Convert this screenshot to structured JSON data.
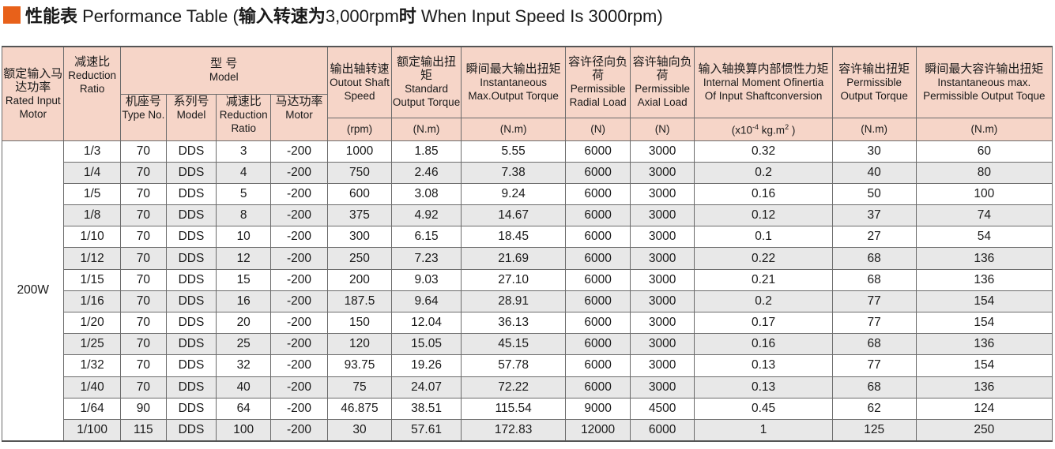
{
  "title": {
    "part1_bold": "性能表",
    "part2": " Performance Table (",
    "part3_bold": "输入转速为",
    "part4": "3,000rpm",
    "part5_bold": "时",
    "part6": " When Input Speed Is 3000rpm)"
  },
  "headers": {
    "rated_motor": {
      "cn": "额定输入马达功率",
      "en": "Rated Input Motor"
    },
    "reduction_ratio": {
      "cn": "减速比",
      "en": "Reduction Ratio"
    },
    "model_group": {
      "cn": "型 号",
      "en": "Model"
    },
    "type_no": {
      "cn": "机座号",
      "en": "Type No."
    },
    "series_model": {
      "cn": "系列号",
      "en": "Model"
    },
    "sub_ratio": {
      "cn": "减速比",
      "en": "Reduction Ratio"
    },
    "motor": {
      "cn": "马达功率",
      "en": "Motor"
    },
    "output_speed": {
      "cn": "输出轴转速",
      "en": "Outout Shaft Speed",
      "unit": "(rpm)"
    },
    "standard_torque": {
      "cn": "额定输出扭矩",
      "en": "Standard Output Torque",
      "unit": "(N.m)"
    },
    "max_torque": {
      "cn": "瞬间最大输出扭矩",
      "en": "Instantaneous Max.Output Torque",
      "unit": "(N.m)"
    },
    "radial_load": {
      "cn": "容许径向负荷",
      "en": "Permissible Radial Load",
      "unit": "(N)"
    },
    "axial_load": {
      "cn": "容许轴向负荷",
      "en": "Permissible Axial Load",
      "unit": "(N)"
    },
    "inertia": {
      "cn": "输入轴换算内部惯性力矩",
      "en1": "Internal Moment Ofinertia",
      "en2": "Of Input Shaftconversion",
      "unit_a": "(x10",
      "unit_sup1": "-4",
      "unit_b": " kg.m",
      "unit_sup2": "2",
      "unit_c": " )"
    },
    "perm_torque": {
      "cn": "容许输出扭矩",
      "en": "Permissible Output Torque",
      "unit": "(N.m)"
    },
    "perm_max_torque": {
      "cn": "瞬间最大容许输出扭矩",
      "en": "Instantaneous max. Permissible Output Toque",
      "unit": "(N.m)"
    }
  },
  "motor_power": "200W",
  "rows": [
    [
      "1/3",
      "70",
      "DDS",
      "3",
      "-200",
      "1000",
      "1.85",
      "5.55",
      "6000",
      "3000",
      "0.32",
      "30",
      "60"
    ],
    [
      "1/4",
      "70",
      "DDS",
      "4",
      "-200",
      "750",
      "2.46",
      "7.38",
      "6000",
      "3000",
      "0.2",
      "40",
      "80"
    ],
    [
      "1/5",
      "70",
      "DDS",
      "5",
      "-200",
      "600",
      "3.08",
      "9.24",
      "6000",
      "3000",
      "0.16",
      "50",
      "100"
    ],
    [
      "1/8",
      "70",
      "DDS",
      "8",
      "-200",
      "375",
      "4.92",
      "14.67",
      "6000",
      "3000",
      "0.12",
      "37",
      "74"
    ],
    [
      "1/10",
      "70",
      "DDS",
      "10",
      "-200",
      "300",
      "6.15",
      "18.45",
      "6000",
      "3000",
      "0.1",
      "27",
      "54"
    ],
    [
      "1/12",
      "70",
      "DDS",
      "12",
      "-200",
      "250",
      "7.23",
      "21.69",
      "6000",
      "3000",
      "0.22",
      "68",
      "136"
    ],
    [
      "1/15",
      "70",
      "DDS",
      "15",
      "-200",
      "200",
      "9.03",
      "27.10",
      "6000",
      "3000",
      "0.21",
      "68",
      "136"
    ],
    [
      "1/16",
      "70",
      "DDS",
      "16",
      "-200",
      "187.5",
      "9.64",
      "28.91",
      "6000",
      "3000",
      "0.2",
      "77",
      "154"
    ],
    [
      "1/20",
      "70",
      "DDS",
      "20",
      "-200",
      "150",
      "12.04",
      "36.13",
      "6000",
      "3000",
      "0.17",
      "77",
      "154"
    ],
    [
      "1/25",
      "70",
      "DDS",
      "25",
      "-200",
      "120",
      "15.05",
      "45.15",
      "6000",
      "3000",
      "0.16",
      "68",
      "136"
    ],
    [
      "1/32",
      "70",
      "DDS",
      "32",
      "-200",
      "93.75",
      "19.26",
      "57.78",
      "6000",
      "3000",
      "0.13",
      "77",
      "154"
    ],
    [
      "1/40",
      "70",
      "DDS",
      "40",
      "-200",
      "75",
      "24.07",
      "72.22",
      "6000",
      "3000",
      "0.13",
      "68",
      "136"
    ],
    [
      "1/64",
      "90",
      "DDS",
      "64",
      "-200",
      "46.875",
      "38.51",
      "115.54",
      "9000",
      "4500",
      "0.45",
      "62",
      "124"
    ],
    [
      "1/100",
      "115",
      "DDS",
      "100",
      "-200",
      "30",
      "57.61",
      "172.83",
      "12000",
      "6000",
      "1",
      "125",
      "250"
    ]
  ],
  "colors": {
    "accent": "#e8611a",
    "header_bg": "#f6d5c8",
    "stripe": "#e8e8e8"
  }
}
